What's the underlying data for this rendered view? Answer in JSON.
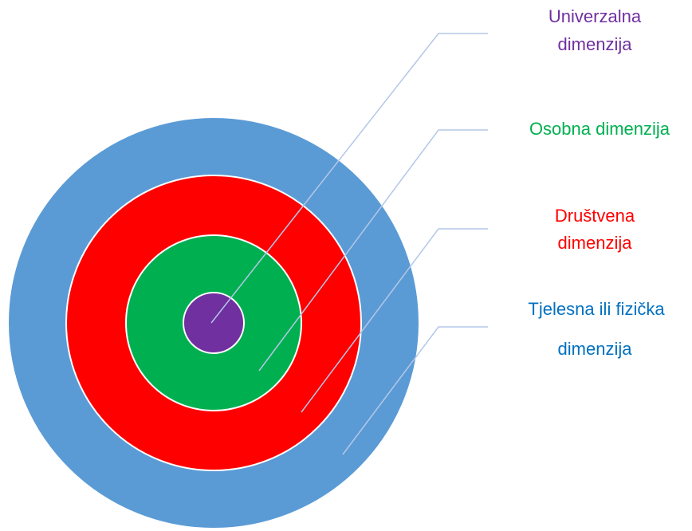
{
  "labels": [
    {
      "lines": [
        "Univerzalna",
        "dimenzija"
      ]
    },
    {
      "lines": [
        "Osobna dimenzija"
      ]
    },
    {
      "lines": [
        "Društvena",
        "dimenzija"
      ]
    },
    {
      "lines": [
        "Tjelesna ili fizička",
        "dimenzija"
      ]
    }
  ]
}
